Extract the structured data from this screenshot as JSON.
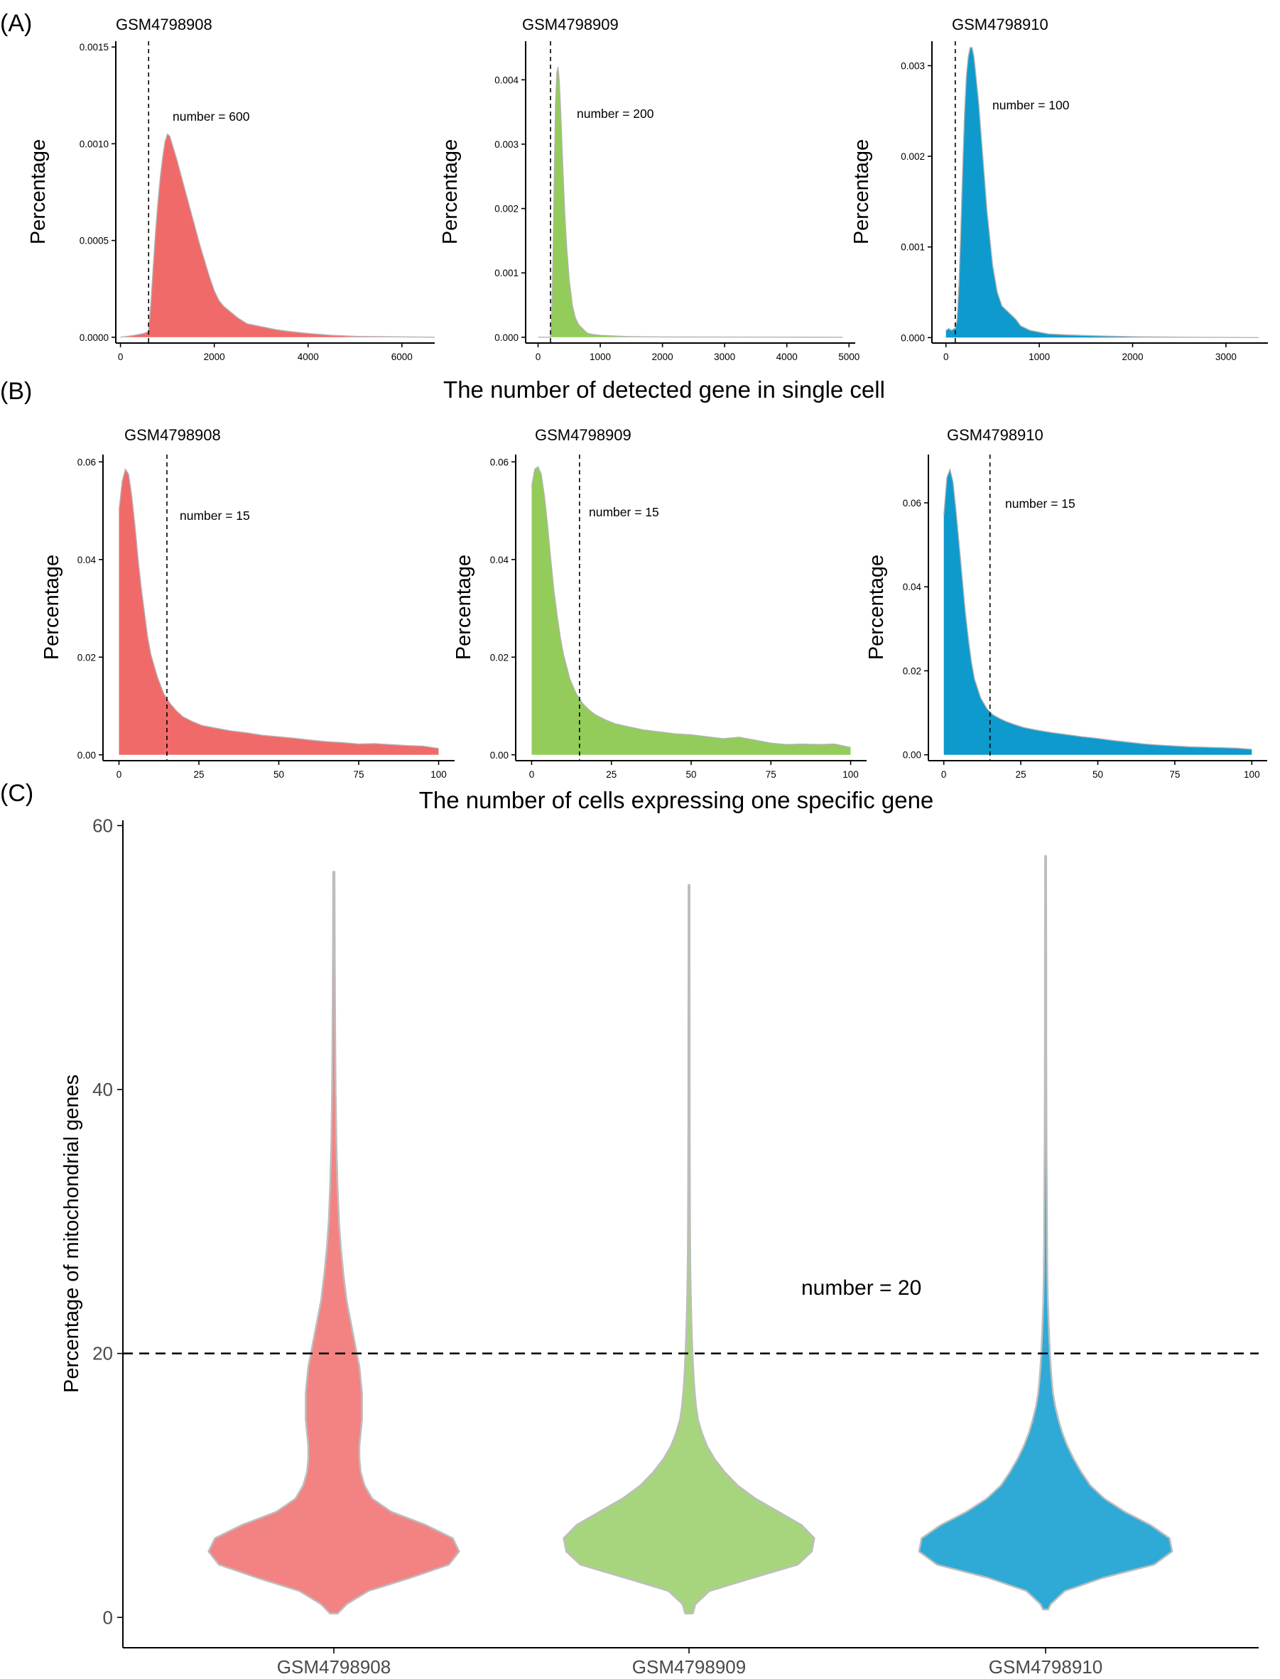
{
  "figure": {
    "panel_letters": [
      "(A)",
      "(B)",
      "(C)"
    ]
  },
  "chart_data": [
    {
      "type": "area",
      "panel": "(A)",
      "title": "GSM4798908",
      "ylabel": "Percentage",
      "xlabel": "The number of detected gene in single cell",
      "color": "#F06A6A",
      "xlim": [
        -100,
        6700
      ],
      "ylim": [
        -3e-05,
        0.00153
      ],
      "xticks": [
        0,
        2000,
        4000,
        6000
      ],
      "xtick_labels": [
        "0",
        "2000",
        "4000",
        "6000"
      ],
      "yticks": [
        0,
        0.0005,
        0.001,
        0.0015
      ],
      "ytick_labels": [
        "0.0000",
        "0.0005",
        "0.0010",
        "0.0015"
      ],
      "cutoff": 600,
      "annotation": "number = 600",
      "x": [
        0,
        300,
        500,
        600,
        650,
        700,
        750,
        800,
        850,
        900,
        950,
        1000,
        1050,
        1100,
        1200,
        1300,
        1400,
        1500,
        1600,
        1700,
        1800,
        1900,
        2000,
        2100,
        2200,
        2300,
        2400,
        2500,
        2700,
        2900,
        3100,
        3300,
        3600,
        4000,
        4500,
        5000,
        6000,
        6700
      ],
      "y": [
        0,
        1e-05,
        2e-05,
        3e-05,
        0.00018,
        0.00037,
        0.00055,
        0.0007,
        0.00083,
        0.00093,
        0.00101,
        0.00105,
        0.00104,
        0.001,
        0.00092,
        0.00083,
        0.00074,
        0.00065,
        0.00056,
        0.00047,
        0.00039,
        0.00031,
        0.00024,
        0.00019,
        0.00016,
        0.00014,
        0.00012,
        0.0001,
        7e-05,
        6e-05,
        5e-05,
        4e-05,
        3e-05,
        2e-05,
        1e-05,
        5e-06,
        2e-06,
        0
      ]
    },
    {
      "type": "area",
      "panel": "(A)",
      "title": "GSM4798909",
      "ylabel": "Percentage",
      "xlabel": "The number of detected gene in single cell",
      "color": "#93CC5A",
      "xlim": [
        -200,
        5100
      ],
      "ylim": [
        -9e-05,
        0.0046
      ],
      "xticks": [
        0,
        1000,
        2000,
        3000,
        4000,
        5000
      ],
      "xtick_labels": [
        "0",
        "1000",
        "2000",
        "3000",
        "4000",
        "5000"
      ],
      "yticks": [
        0,
        0.001,
        0.002,
        0.003,
        0.004
      ],
      "ytick_labels": [
        "0.000",
        "0.001",
        "0.002",
        "0.003",
        "0.004"
      ],
      "cutoff": 200,
      "annotation": "number = 200",
      "x": [
        0,
        100,
        200,
        220,
        240,
        260,
        280,
        300,
        320,
        340,
        360,
        380,
        400,
        430,
        460,
        500,
        550,
        600,
        650,
        700,
        750,
        800,
        900,
        1000,
        1200,
        1500,
        2000,
        3000,
        4000,
        4900
      ],
      "y": [
        0,
        0,
        0,
        0.0004,
        0.0012,
        0.0025,
        0.0036,
        0.0041,
        0.0042,
        0.004,
        0.0036,
        0.0031,
        0.0026,
        0.0019,
        0.0014,
        0.0009,
        0.0005,
        0.0003,
        0.0002,
        0.00015,
        0.0001,
        6e-05,
        4e-05,
        3e-05,
        2e-05,
        1e-05,
        5e-06,
        3e-06,
        2e-06,
        0
      ]
    },
    {
      "type": "area",
      "panel": "(A)",
      "title": "GSM4798910",
      "ylabel": "Percentage",
      "xlabel": "The number of detected gene in single cell",
      "color": "#0E9ACC",
      "xlim": [
        -150,
        3450
      ],
      "ylim": [
        -6e-05,
        0.00327
      ],
      "xticks": [
        0,
        1000,
        2000,
        3000
      ],
      "xtick_labels": [
        "0",
        "1000",
        "2000",
        "3000"
      ],
      "yticks": [
        0,
        0.001,
        0.002,
        0.003
      ],
      "ytick_labels": [
        "0.000",
        "0.001",
        "0.002",
        "0.003"
      ],
      "cutoff": 100,
      "annotation": "number = 100",
      "x": [
        0,
        30,
        60,
        90,
        100,
        120,
        140,
        160,
        180,
        200,
        220,
        240,
        260,
        280,
        300,
        320,
        350,
        380,
        410,
        440,
        470,
        500,
        550,
        600,
        650,
        700,
        750,
        800,
        900,
        1000,
        1100,
        1300,
        1600,
        2000,
        2500,
        3000,
        3350
      ],
      "y": [
        8e-05,
        0.0001,
        8e-05,
        0.0001,
        0.0001,
        0.0002,
        0.0006,
        0.0012,
        0.0019,
        0.0025,
        0.0029,
        0.0031,
        0.0032,
        0.0032,
        0.0031,
        0.0029,
        0.0026,
        0.0022,
        0.0018,
        0.0014,
        0.0011,
        0.0008,
        0.0005,
        0.00035,
        0.0003,
        0.00025,
        0.0002,
        0.00013,
        8e-05,
        6e-05,
        4e-05,
        3e-05,
        2e-05,
        1e-05,
        5e-06,
        2e-06,
        0
      ]
    },
    {
      "type": "area",
      "panel": "(B)",
      "title": "GSM4798908",
      "ylabel": "Percentage",
      "xlabel": "The number of cells expressing one specific gene",
      "color": "#F06A6A",
      "xlim": [
        -5,
        105
      ],
      "ylim": [
        -0.0012,
        0.0615
      ],
      "xticks": [
        0,
        25,
        50,
        75,
        100
      ],
      "xtick_labels": [
        "0",
        "25",
        "50",
        "75",
        "100"
      ],
      "yticks": [
        0,
        0.02,
        0.04,
        0.06
      ],
      "ytick_labels": [
        "0.00",
        "0.02",
        "0.04",
        "0.06"
      ],
      "cutoff": 15,
      "annotation": "number = 15",
      "x": [
        0,
        1,
        2,
        3,
        4,
        5,
        6,
        7,
        8,
        9,
        10,
        12,
        14,
        16,
        18,
        20,
        23,
        26,
        30,
        35,
        40,
        45,
        50,
        55,
        60,
        65,
        70,
        75,
        80,
        85,
        90,
        95,
        100
      ],
      "y": [
        0.05,
        0.056,
        0.0585,
        0.0575,
        0.053,
        0.047,
        0.04,
        0.034,
        0.029,
        0.024,
        0.0205,
        0.016,
        0.0125,
        0.0105,
        0.009,
        0.0078,
        0.0068,
        0.006,
        0.0055,
        0.0049,
        0.0045,
        0.004,
        0.0037,
        0.0034,
        0.003,
        0.0027,
        0.0025,
        0.0022,
        0.0023,
        0.0021,
        0.0019,
        0.0018,
        0.0013
      ]
    },
    {
      "type": "area",
      "panel": "(B)",
      "title": "GSM4798909",
      "ylabel": "Percentage",
      "xlabel": "The number of cells expressing one specific gene",
      "color": "#93CC5A",
      "xlim": [
        -5,
        105
      ],
      "ylim": [
        -0.0012,
        0.0615
      ],
      "xticks": [
        0,
        25,
        50,
        75,
        100
      ],
      "xtick_labels": [
        "0",
        "25",
        "50",
        "75",
        "100"
      ],
      "yticks": [
        0,
        0.02,
        0.04,
        0.06
      ],
      "ytick_labels": [
        "0.00",
        "0.02",
        "0.04",
        "0.06"
      ],
      "cutoff": 15,
      "annotation": "number = 15",
      "x": [
        0,
        1,
        2,
        3,
        4,
        5,
        6,
        7,
        8,
        9,
        10,
        12,
        14,
        16,
        18,
        20,
        23,
        26,
        30,
        35,
        40,
        45,
        50,
        55,
        60,
        65,
        70,
        75,
        80,
        85,
        90,
        95,
        100
      ],
      "y": [
        0.055,
        0.0585,
        0.059,
        0.0575,
        0.053,
        0.047,
        0.04,
        0.0335,
        0.0285,
        0.024,
        0.0205,
        0.0155,
        0.0125,
        0.0105,
        0.0092,
        0.0082,
        0.0072,
        0.0064,
        0.0058,
        0.0051,
        0.0047,
        0.0043,
        0.0041,
        0.0037,
        0.0033,
        0.0036,
        0.003,
        0.0024,
        0.0021,
        0.0022,
        0.0021,
        0.0022,
        0.0015
      ]
    },
    {
      "type": "area",
      "panel": "(B)",
      "title": "GSM4798910",
      "ylabel": "Percentage",
      "xlabel": "The number of cells expressing one specific gene",
      "color": "#0E9ACC",
      "xlim": [
        -5,
        105
      ],
      "ylim": [
        -0.0014,
        0.0715
      ],
      "xticks": [
        0,
        25,
        50,
        75,
        100
      ],
      "xtick_labels": [
        "0",
        "25",
        "50",
        "75",
        "100"
      ],
      "yticks": [
        0,
        0.02,
        0.04,
        0.06
      ],
      "ytick_labels": [
        "0.00",
        "0.02",
        "0.04",
        "0.06"
      ],
      "cutoff": 15,
      "annotation": "number = 15",
      "x": [
        0,
        1,
        2,
        3,
        4,
        5,
        6,
        7,
        8,
        9,
        10,
        12,
        14,
        16,
        18,
        20,
        23,
        26,
        30,
        35,
        40,
        45,
        50,
        55,
        60,
        65,
        70,
        75,
        80,
        85,
        90,
        95,
        100
      ],
      "y": [
        0.057,
        0.066,
        0.068,
        0.065,
        0.058,
        0.05,
        0.042,
        0.034,
        0.0275,
        0.022,
        0.018,
        0.0135,
        0.011,
        0.0095,
        0.0087,
        0.008,
        0.0072,
        0.0065,
        0.0059,
        0.0053,
        0.0048,
        0.0043,
        0.0039,
        0.0034,
        0.003,
        0.0026,
        0.0023,
        0.0021,
        0.0019,
        0.0018,
        0.0017,
        0.0016,
        0.0013
      ]
    },
    {
      "type": "violin",
      "panel": "(C)",
      "ylabel": "Percentage of mitochondrial genes",
      "ylim": [
        -2.3,
        60.4
      ],
      "yticks": [
        0,
        20,
        40,
        60
      ],
      "ytick_labels": [
        "0",
        "20",
        "40",
        "60"
      ],
      "cutoff": 20,
      "annotation": "number = 20",
      "categories": [
        "GSM4798908",
        "GSM4798909",
        "GSM4798910"
      ],
      "series": [
        {
          "name": "GSM4798908",
          "color": "#F38383",
          "y": [
            0.3,
            1,
            2,
            3,
            4,
            5,
            6,
            7,
            8,
            9,
            10,
            11,
            12,
            13,
            14,
            15,
            16,
            17,
            18,
            19,
            20,
            21,
            22,
            24,
            26,
            28,
            30,
            33,
            36,
            40,
            45,
            50,
            56.5
          ],
          "half_width": [
            0.03,
            0.1,
            0.27,
            0.6,
            0.9,
            0.98,
            0.93,
            0.72,
            0.45,
            0.3,
            0.24,
            0.21,
            0.2,
            0.2,
            0.21,
            0.22,
            0.22,
            0.22,
            0.21,
            0.2,
            0.18,
            0.16,
            0.14,
            0.1,
            0.075,
            0.055,
            0.04,
            0.028,
            0.02,
            0.014,
            0.01,
            0.007,
            0.005
          ]
        },
        {
          "name": "GSM4798909",
          "color": "#A7D57E",
          "y": [
            0.3,
            1,
            2,
            3,
            4,
            5,
            6,
            7,
            8,
            9,
            10,
            11,
            12,
            13,
            14,
            15,
            16,
            17,
            18,
            19,
            20,
            22,
            24,
            26,
            28,
            30,
            35,
            40,
            45,
            50,
            55.5
          ],
          "half_width": [
            0.03,
            0.05,
            0.16,
            0.5,
            0.85,
            0.96,
            0.98,
            0.88,
            0.7,
            0.52,
            0.38,
            0.28,
            0.2,
            0.14,
            0.1,
            0.07,
            0.055,
            0.045,
            0.038,
            0.032,
            0.027,
            0.02,
            0.015,
            0.011,
            0.009,
            0.008,
            0.006,
            0.005,
            0.005,
            0.004,
            0.004
          ]
        },
        {
          "name": "GSM4798910",
          "color": "#2FAAD6",
          "y": [
            0.6,
            1,
            2,
            3,
            4,
            5,
            6,
            7,
            8,
            9,
            10,
            11,
            12,
            13,
            14,
            15,
            16,
            17,
            18,
            19,
            20,
            22,
            24,
            26,
            28,
            30,
            35,
            40,
            45,
            50,
            57.7
          ],
          "half_width": [
            0.02,
            0.04,
            0.15,
            0.45,
            0.85,
            0.99,
            0.97,
            0.82,
            0.62,
            0.46,
            0.35,
            0.28,
            0.22,
            0.17,
            0.13,
            0.1,
            0.075,
            0.058,
            0.048,
            0.04,
            0.034,
            0.025,
            0.018,
            0.014,
            0.012,
            0.011,
            0.008,
            0.006,
            0.005,
            0.005,
            0.004
          ]
        }
      ]
    }
  ]
}
